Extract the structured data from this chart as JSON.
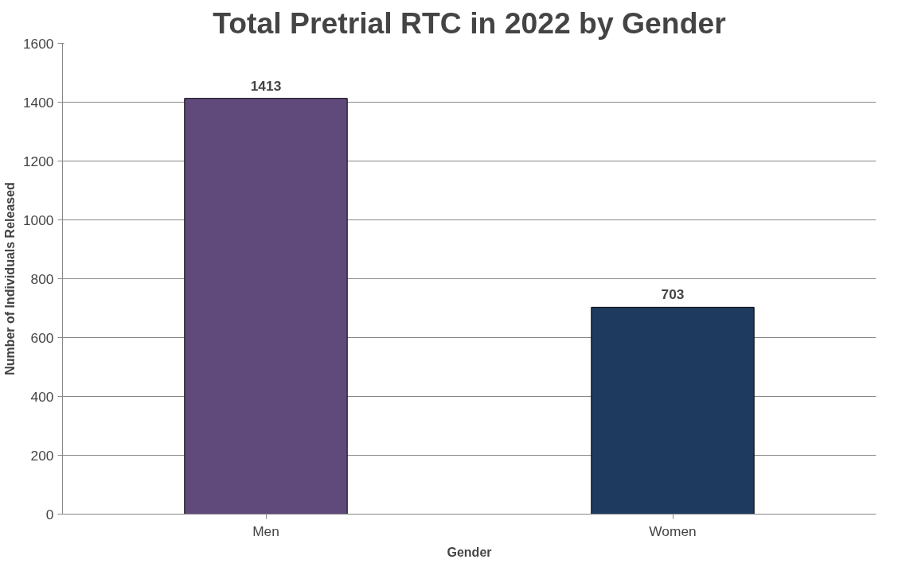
{
  "chart_data": {
    "type": "bar",
    "title": "Total Pretrial RTC in 2022 by Gender",
    "xlabel": "Gender",
    "ylabel": "Number of Individuals Released",
    "categories": [
      "Men",
      "Women"
    ],
    "values": [
      1413,
      703
    ],
    "colors": [
      "#604a7b",
      "#1f3a5f"
    ],
    "ylim": [
      0,
      1600
    ],
    "yticks": [
      0,
      200,
      400,
      600,
      800,
      1000,
      1200,
      1400,
      1600
    ],
    "grid": "y",
    "data_labels": true
  }
}
